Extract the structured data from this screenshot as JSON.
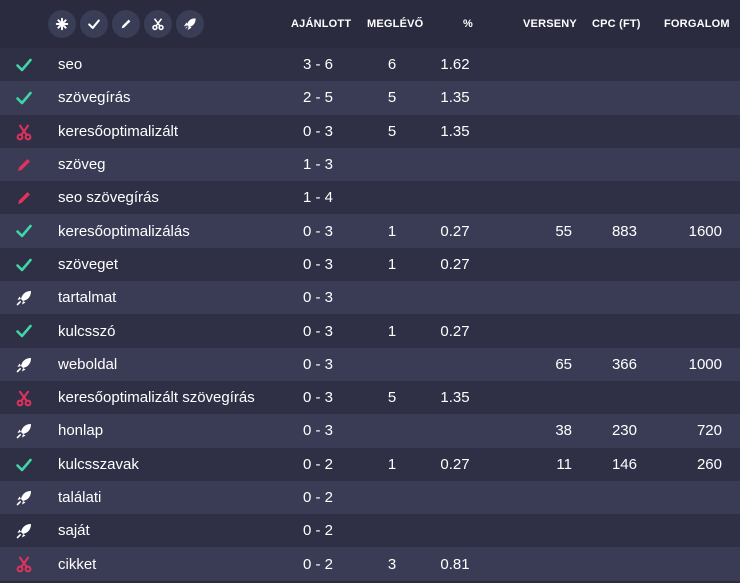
{
  "colors": {
    "check": "#3ed6a8",
    "scissors": "#e0325c",
    "pencil": "#e0325c",
    "rocket": "#ffffff"
  },
  "filters": [
    {
      "icon": "asterisk-icon"
    },
    {
      "icon": "check-icon"
    },
    {
      "icon": "pencil-icon"
    },
    {
      "icon": "scissors-icon"
    },
    {
      "icon": "rocket-icon"
    }
  ],
  "header": {
    "ajanlott": "AJÁNLOTT",
    "meglevo": "MEGLÉVŐ",
    "percent": "%",
    "verseny": "VERSENY",
    "cpc": "CPC (FT)",
    "forgalom": "FORGALOM"
  },
  "rows": [
    {
      "icon": "check",
      "keyword": "seo",
      "ajanlott": "3 - 6",
      "meglevo": "6",
      "percent": "1.62",
      "verseny": "",
      "cpc": "",
      "forgalom": ""
    },
    {
      "icon": "check",
      "keyword": "szövegírás",
      "ajanlott": "2 - 5",
      "meglevo": "5",
      "percent": "1.35",
      "verseny": "",
      "cpc": "",
      "forgalom": ""
    },
    {
      "icon": "scissors",
      "keyword": "keresőoptimalizált",
      "ajanlott": "0 - 3",
      "meglevo": "5",
      "percent": "1.35",
      "verseny": "",
      "cpc": "",
      "forgalom": ""
    },
    {
      "icon": "pencil",
      "keyword": "szöveg",
      "ajanlott": "1 - 3",
      "meglevo": "",
      "percent": "",
      "verseny": "",
      "cpc": "",
      "forgalom": ""
    },
    {
      "icon": "pencil",
      "keyword": "seo szövegírás",
      "ajanlott": "1 - 4",
      "meglevo": "",
      "percent": "",
      "verseny": "",
      "cpc": "",
      "forgalom": ""
    },
    {
      "icon": "check",
      "keyword": "keresőoptimalizálás",
      "ajanlott": "0 - 3",
      "meglevo": "1",
      "percent": "0.27",
      "verseny": "55",
      "cpc": "883",
      "forgalom": "1600"
    },
    {
      "icon": "check",
      "keyword": "szöveget",
      "ajanlott": "0 - 3",
      "meglevo": "1",
      "percent": "0.27",
      "verseny": "",
      "cpc": "",
      "forgalom": ""
    },
    {
      "icon": "rocket",
      "keyword": "tartalmat",
      "ajanlott": "0 - 3",
      "meglevo": "",
      "percent": "",
      "verseny": "",
      "cpc": "",
      "forgalom": ""
    },
    {
      "icon": "check",
      "keyword": "kulcsszó",
      "ajanlott": "0 - 3",
      "meglevo": "1",
      "percent": "0.27",
      "verseny": "",
      "cpc": "",
      "forgalom": ""
    },
    {
      "icon": "rocket",
      "keyword": "weboldal",
      "ajanlott": "0 - 3",
      "meglevo": "",
      "percent": "",
      "verseny": "65",
      "cpc": "366",
      "forgalom": "1000"
    },
    {
      "icon": "scissors",
      "keyword": "keresőoptimalizált szövegírás",
      "ajanlott": "0 - 3",
      "meglevo": "5",
      "percent": "1.35",
      "verseny": "",
      "cpc": "",
      "forgalom": ""
    },
    {
      "icon": "rocket",
      "keyword": "honlap",
      "ajanlott": "0 - 3",
      "meglevo": "",
      "percent": "",
      "verseny": "38",
      "cpc": "230",
      "forgalom": "720"
    },
    {
      "icon": "check",
      "keyword": "kulcsszavak",
      "ajanlott": "0 - 2",
      "meglevo": "1",
      "percent": "0.27",
      "verseny": "11",
      "cpc": "146",
      "forgalom": "260"
    },
    {
      "icon": "rocket",
      "keyword": "találati",
      "ajanlott": "0 - 2",
      "meglevo": "",
      "percent": "",
      "verseny": "",
      "cpc": "",
      "forgalom": ""
    },
    {
      "icon": "rocket",
      "keyword": "saját",
      "ajanlott": "0 - 2",
      "meglevo": "",
      "percent": "",
      "verseny": "",
      "cpc": "",
      "forgalom": ""
    },
    {
      "icon": "scissors",
      "keyword": "cikket",
      "ajanlott": "0 - 2",
      "meglevo": "3",
      "percent": "0.81",
      "verseny": "",
      "cpc": "",
      "forgalom": ""
    }
  ]
}
